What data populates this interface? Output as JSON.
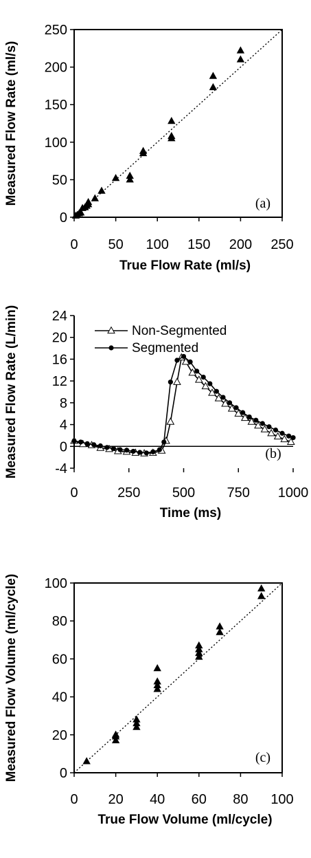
{
  "chart_data": [
    {
      "type": "scatter",
      "panel_label": "(a)",
      "xlabel": "True Flow Rate (ml/s)",
      "ylabel": "Measured Flow Rate  (ml/s)",
      "xlim": [
        0,
        250
      ],
      "ylim": [
        0,
        250
      ],
      "xticks": [
        "0",
        "50",
        "100",
        "150",
        "200",
        "250"
      ],
      "yticks": [
        "0",
        "50",
        "100",
        "150",
        "200",
        "250"
      ],
      "identity_line": true,
      "grid": false,
      "series": [
        {
          "marker": "filled-triangle",
          "points": [
            [
              2,
              2
            ],
            [
              4,
              3
            ],
            [
              6,
              5
            ],
            [
              8,
              6
            ],
            [
              10,
              12
            ],
            [
              13,
              13
            ],
            [
              15,
              15
            ],
            [
              17,
              17
            ],
            [
              17,
              20
            ],
            [
              25,
              25
            ],
            [
              33,
              35
            ],
            [
              50,
              52
            ],
            [
              67,
              50
            ],
            [
              67,
              55
            ],
            [
              83,
              85
            ],
            [
              83,
              88
            ],
            [
              117,
              105
            ],
            [
              117,
              108
            ],
            [
              117,
              128
            ],
            [
              167,
              173
            ],
            [
              167,
              188
            ],
            [
              200,
              210
            ],
            [
              200,
              222
            ]
          ]
        }
      ]
    },
    {
      "type": "line",
      "panel_label": "(b)",
      "xlabel": "Time (ms)",
      "ylabel": "Measured Flow Rate  (L/min)",
      "xlim": [
        0,
        1000
      ],
      "ylim": [
        -4,
        24
      ],
      "xticks": [
        "0",
        "250",
        "500",
        "750",
        "1000"
      ],
      "yticks": [
        "-4",
        "0",
        "4",
        "8",
        "12",
        "16",
        "20",
        "24"
      ],
      "legend_position": "top-left",
      "grid": false,
      "series": [
        {
          "name": "Non-Segmented",
          "marker": "open-triangle",
          "x": [
            0,
            40,
            80,
            120,
            160,
            200,
            240,
            280,
            320,
            360,
            400,
            420,
            440,
            470,
            490,
            510,
            540,
            570,
            600,
            630,
            660,
            690,
            720,
            750,
            780,
            810,
            840,
            870,
            900,
            930,
            960,
            990
          ],
          "y": [
            1.0,
            0.4,
            0.2,
            -0.3,
            -0.5,
            -0.9,
            -1.0,
            -1.2,
            -1.3,
            -1.2,
            -0.8,
            1.0,
            4.5,
            11.8,
            16.3,
            15.5,
            13.5,
            12.2,
            11.0,
            9.8,
            8.8,
            7.8,
            6.9,
            6.0,
            5.2,
            4.5,
            3.8,
            3.1,
            2.4,
            1.8,
            1.3,
            0.8
          ]
        },
        {
          "name": "Segmented",
          "marker": "filled-circle",
          "x": [
            0,
            30,
            60,
            90,
            120,
            150,
            180,
            210,
            240,
            270,
            300,
            330,
            360,
            390,
            410,
            440,
            470,
            500,
            530,
            560,
            590,
            620,
            650,
            680,
            710,
            740,
            770,
            800,
            830,
            860,
            890,
            920,
            950,
            980,
            1000
          ],
          "y": [
            1.0,
            0.8,
            0.5,
            0.3,
            0.1,
            -0.2,
            -0.4,
            -0.6,
            -0.7,
            -0.9,
            -1.1,
            -1.2,
            -1.0,
            -0.6,
            0.8,
            11.8,
            15.8,
            16.5,
            15.5,
            13.8,
            12.7,
            11.5,
            10.1,
            9.0,
            8.0,
            7.1,
            6.2,
            5.4,
            4.8,
            4.2,
            3.6,
            3.0,
            2.4,
            1.9,
            1.6
          ]
        }
      ]
    },
    {
      "type": "scatter",
      "panel_label": "(c)",
      "xlabel": "True Flow Volume (ml/cycle)",
      "ylabel": "Measured Flow Volume  (ml/cycle)",
      "xlim": [
        0,
        100
      ],
      "ylim": [
        0,
        100
      ],
      "xticks": [
        "0",
        "20",
        "40",
        "60",
        "80",
        "100"
      ],
      "yticks": [
        "0",
        "20",
        "40",
        "60",
        "80",
        "100"
      ],
      "identity_line": true,
      "grid": false,
      "series": [
        {
          "marker": "filled-triangle",
          "points": [
            [
              6,
              6
            ],
            [
              20,
              17
            ],
            [
              20,
              19
            ],
            [
              20,
              20
            ],
            [
              30,
              24
            ],
            [
              30,
              26
            ],
            [
              30,
              28
            ],
            [
              40,
              44
            ],
            [
              40,
              46
            ],
            [
              40,
              48
            ],
            [
              40,
              55
            ],
            [
              60,
              61
            ],
            [
              60,
              63
            ],
            [
              60,
              65
            ],
            [
              60,
              67
            ],
            [
              70,
              74
            ],
            [
              70,
              77
            ],
            [
              90,
              93
            ],
            [
              90,
              97
            ]
          ]
        }
      ]
    }
  ]
}
